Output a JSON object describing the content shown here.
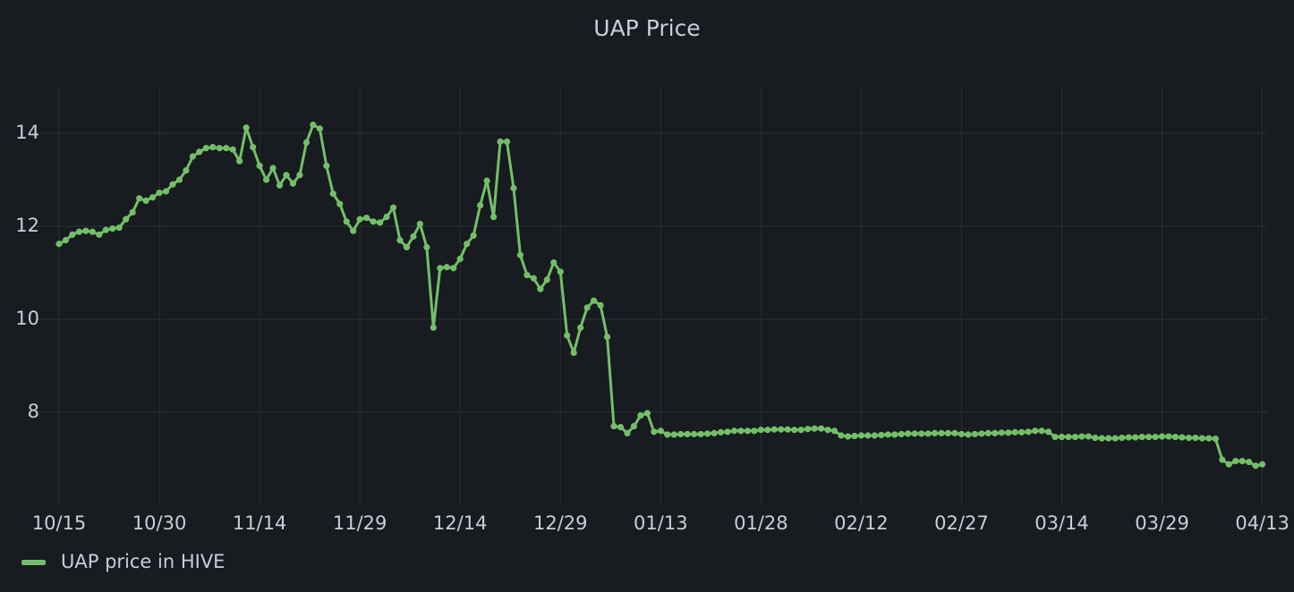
{
  "chart_data": {
    "type": "line",
    "title": "UAP Price",
    "x": [
      "10/15",
      "10/16",
      "10/17",
      "10/18",
      "10/19",
      "10/20",
      "10/21",
      "10/22",
      "10/23",
      "10/24",
      "10/25",
      "10/26",
      "10/27",
      "10/28",
      "10/29",
      "10/30",
      "10/31",
      "11/01",
      "11/02",
      "11/03",
      "11/04",
      "11/05",
      "11/06",
      "11/07",
      "11/08",
      "11/09",
      "11/10",
      "11/11",
      "11/12",
      "11/13",
      "11/14",
      "11/15",
      "11/16",
      "11/17",
      "11/18",
      "11/19",
      "11/20",
      "11/21",
      "11/22",
      "11/23",
      "11/24",
      "11/25",
      "11/26",
      "11/27",
      "11/28",
      "11/29",
      "11/30",
      "12/01",
      "12/02",
      "12/03",
      "12/04",
      "12/05",
      "12/06",
      "12/07",
      "12/08",
      "12/09",
      "12/10",
      "12/11",
      "12/12",
      "12/13",
      "12/14",
      "12/15",
      "12/16",
      "12/17",
      "12/18",
      "12/19",
      "12/20",
      "12/21",
      "12/22",
      "12/23",
      "12/24",
      "12/25",
      "12/26",
      "12/27",
      "12/28",
      "12/29",
      "12/30",
      "12/31",
      "01/01",
      "01/02",
      "01/03",
      "01/04",
      "01/05",
      "01/06",
      "01/07",
      "01/08",
      "01/09",
      "01/10",
      "01/11",
      "01/12",
      "01/13",
      "01/14",
      "01/15",
      "01/16",
      "01/17",
      "01/18",
      "01/19",
      "01/20",
      "01/21",
      "01/22",
      "01/23",
      "01/24",
      "01/25",
      "01/26",
      "01/27",
      "01/28",
      "01/29",
      "01/30",
      "01/31",
      "02/01",
      "02/02",
      "02/03",
      "02/04",
      "02/05",
      "02/06",
      "02/07",
      "02/08",
      "02/09",
      "02/10",
      "02/11",
      "02/12",
      "02/13",
      "02/14",
      "02/15",
      "02/16",
      "02/17",
      "02/18",
      "02/19",
      "02/20",
      "02/21",
      "02/22",
      "02/23",
      "02/24",
      "02/25",
      "02/26",
      "02/27",
      "02/28",
      "03/01",
      "03/02",
      "03/03",
      "03/04",
      "03/05",
      "03/06",
      "03/07",
      "03/08",
      "03/09",
      "03/10",
      "03/11",
      "03/12",
      "03/13",
      "03/14",
      "03/15",
      "03/16",
      "03/17",
      "03/18",
      "03/19",
      "03/20",
      "03/21",
      "03/22",
      "03/23",
      "03/24",
      "03/25",
      "03/26",
      "03/27",
      "03/28",
      "03/29",
      "03/30",
      "03/31",
      "04/01",
      "04/02",
      "04/03",
      "04/04",
      "04/05",
      "04/06",
      "04/07",
      "04/08",
      "04/09",
      "04/10",
      "04/11",
      "04/12",
      "04/13"
    ],
    "series": [
      {
        "name": "UAP price in HIVE",
        "color": "#73bf69",
        "values": [
          11.62,
          11.7,
          11.82,
          11.88,
          11.9,
          11.88,
          11.82,
          11.92,
          11.95,
          11.97,
          12.15,
          12.3,
          12.6,
          12.55,
          12.62,
          12.72,
          12.75,
          12.9,
          13.0,
          13.2,
          13.5,
          13.6,
          13.68,
          13.7,
          13.68,
          13.68,
          13.65,
          13.4,
          14.12,
          13.7,
          13.3,
          13.0,
          13.25,
          12.88,
          13.1,
          12.92,
          13.1,
          13.8,
          14.18,
          14.1,
          13.3,
          12.7,
          12.48,
          12.1,
          11.9,
          12.15,
          12.18,
          12.1,
          12.08,
          12.2,
          12.4,
          11.7,
          11.55,
          11.78,
          12.05,
          11.55,
          9.82,
          11.1,
          11.12,
          11.1,
          11.3,
          11.62,
          11.8,
          12.45,
          12.98,
          12.2,
          13.82,
          13.82,
          12.82,
          11.38,
          10.95,
          10.88,
          10.65,
          10.85,
          11.22,
          11.02,
          9.65,
          9.28,
          9.82,
          10.25,
          10.4,
          10.3,
          9.62,
          7.7,
          7.68,
          7.55,
          7.7,
          7.93,
          7.98,
          7.58,
          7.6,
          7.52,
          7.52,
          7.53,
          7.53,
          7.53,
          7.53,
          7.54,
          7.55,
          7.57,
          7.58,
          7.6,
          7.6,
          7.6,
          7.6,
          7.62,
          7.62,
          7.63,
          7.63,
          7.63,
          7.62,
          7.62,
          7.64,
          7.65,
          7.65,
          7.62,
          7.6,
          7.5,
          7.48,
          7.49,
          7.5,
          7.5,
          7.5,
          7.51,
          7.52,
          7.52,
          7.53,
          7.54,
          7.54,
          7.54,
          7.54,
          7.55,
          7.55,
          7.55,
          7.55,
          7.53,
          7.52,
          7.53,
          7.54,
          7.55,
          7.55,
          7.56,
          7.56,
          7.57,
          7.57,
          7.58,
          7.6,
          7.6,
          7.58,
          7.47,
          7.47,
          7.47,
          7.47,
          7.48,
          7.48,
          7.45,
          7.44,
          7.44,
          7.44,
          7.45,
          7.46,
          7.46,
          7.47,
          7.47,
          7.47,
          7.48,
          7.48,
          7.47,
          7.46,
          7.45,
          7.45,
          7.44,
          7.44,
          7.43,
          6.98,
          6.88,
          6.95,
          6.95,
          6.93,
          6.85,
          6.88
        ]
      }
    ],
    "xticks": [
      "10/15",
      "10/30",
      "11/14",
      "11/29",
      "12/14",
      "12/29",
      "01/13",
      "01/28",
      "02/12",
      "02/27",
      "03/14",
      "03/29",
      "04/13"
    ],
    "ylim": [
      6,
      15
    ],
    "yticks": [
      8,
      10,
      12,
      14
    ],
    "grid": true,
    "legend": "bottom-left"
  }
}
